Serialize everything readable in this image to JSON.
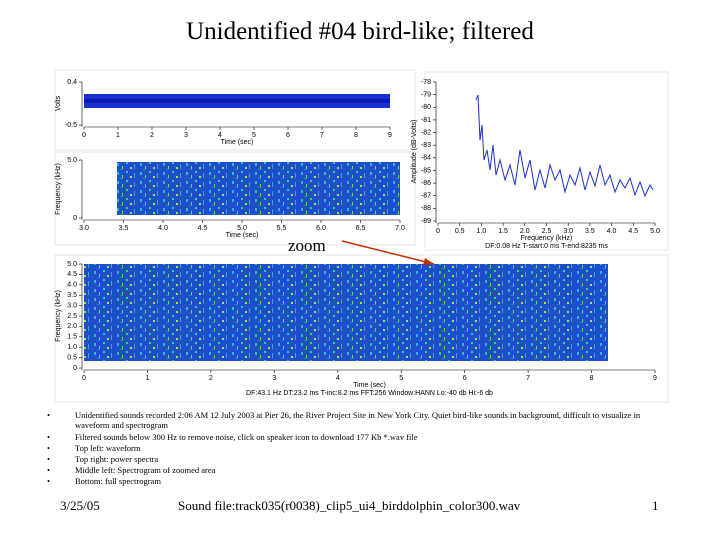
{
  "title": "Unidentified #04 bird-like; filtered",
  "panels": {
    "waveform": {
      "ylabel": "Volts",
      "xlabel": "Time (sec)",
      "yticks": [
        "0.4",
        "-0.5"
      ],
      "xticks": [
        "0",
        "1",
        "2",
        "3",
        "4",
        "5",
        "6",
        "7",
        "8",
        "9"
      ]
    },
    "zoom": {
      "ylabel": "Frequency (kHz)",
      "xlabel": "Time (sec)",
      "yticks": [
        "5.0",
        "0"
      ],
      "xticks": [
        "3.0",
        "3.5",
        "4.0",
        "4.5",
        "5.0",
        "5.5",
        "6.0",
        "6.5",
        "7.0"
      ]
    },
    "spectrum": {
      "ylabel": "Amplitude (dB-Volts)",
      "xlabel": "Frequency (kHz)",
      "yticks": [
        "-78",
        "-79",
        "-80",
        "-81",
        "-82",
        "-83",
        "-84",
        "-85",
        "-86",
        "-87",
        "-88",
        "-89"
      ],
      "xticks": [
        "0",
        "0.5",
        "1.0",
        "1.5",
        "2.0",
        "2.5",
        "3.0",
        "3.5",
        "4.0",
        "4.5",
        "5.0"
      ],
      "footer": "DF:0.08 Hz    T-start:0 ms    T-end:8235 ms"
    },
    "full": {
      "ylabel": "Frequency (kHz)",
      "xlabel": "Time (sec)",
      "yticks": [
        "5.0",
        "4.5",
        "4.0",
        "3.5",
        "3.0",
        "2.5",
        "2.0",
        "1.5",
        "1.0",
        "0.5",
        "0"
      ],
      "xticks": [
        "0",
        "1",
        "2",
        "3",
        "4",
        "5",
        "6",
        "7",
        "8",
        "9"
      ],
      "footer": "DF:43.1 Hz    DT:23.2 ms    T-inc:8.2 ms    FFT:256    Window:HANN    Lo:-40 db    Hi:-6 db"
    }
  },
  "annotation": "zoom",
  "bullets": [
    "Unidentified sounds recorded 2:06 AM 12 July 2003 at Pier 26, the River Project Site in New York City.  Quiet bird-like sounds in background, difficult to visualize in waveform and spectrogram",
    "Filtered sounds below 300 Hz to remove noise, click on speaker icon to download 177 Kb *.wav file",
    "Top left: waveform",
    "Top right: power spectra",
    "Middle left: Spectrogram of zoomed area",
    "Bottom: full spectrogram"
  ],
  "footer": {
    "date": "3/25/05",
    "center": "Sound file:track035(r0038)_clip5_ui4_birddolphin_color300.wav",
    "page": "1"
  }
}
